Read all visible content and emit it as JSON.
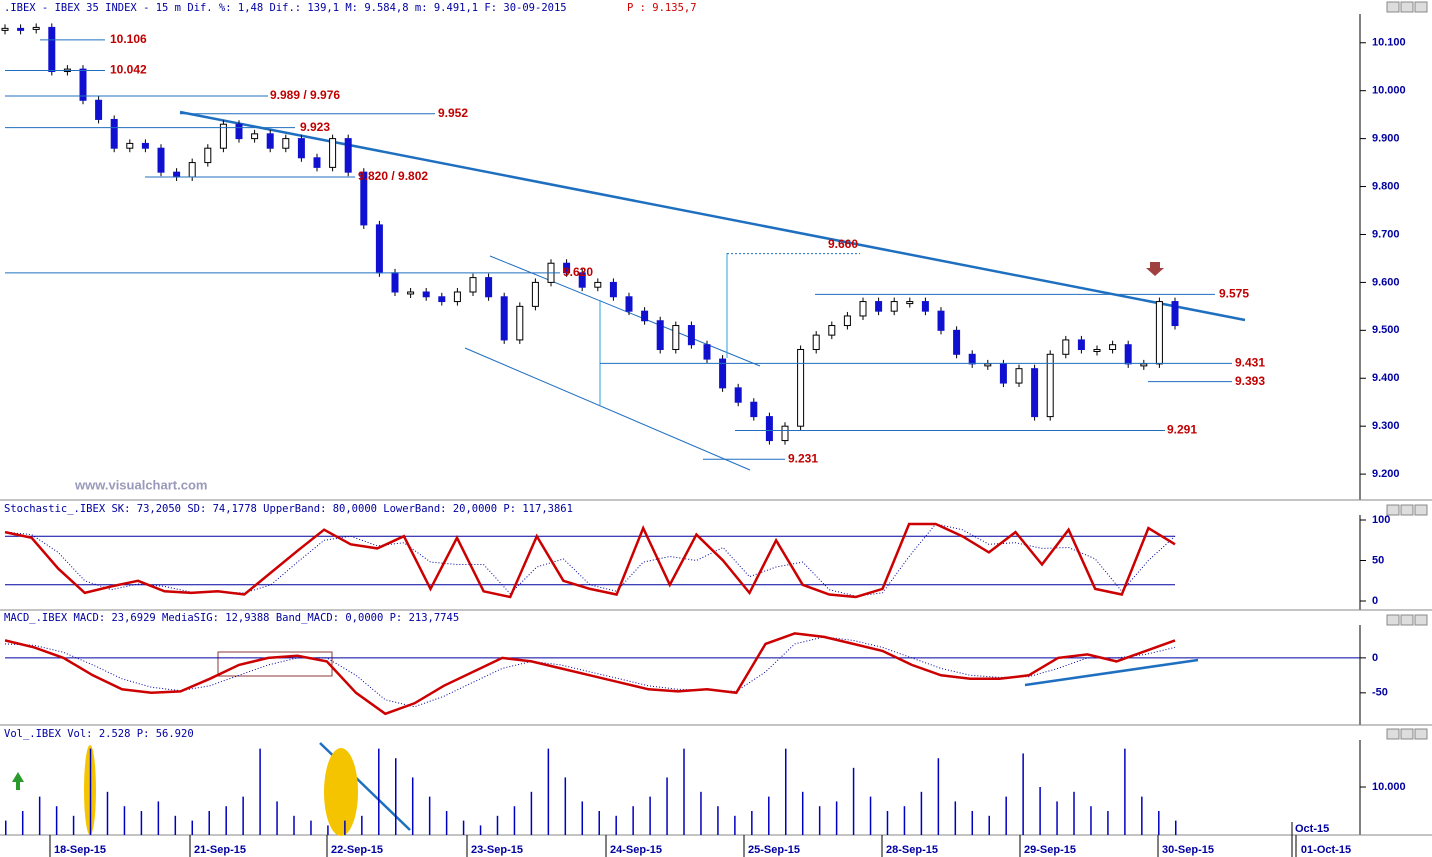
{
  "header": {
    "info": ".IBEX - IBEX 35 INDEX -  15 m Dif. %: 1,48 Dif.: 139,1 M: 9.584,8 m: 9.491,1 F: 30-09-2015",
    "last": "P : 9.135,7"
  },
  "watermark": "www.visualchart.com",
  "chart_data": [
    {
      "type": "candlestick",
      "values": [
        10130,
        10128,
        10132,
        10040,
        10045,
        9980,
        9940,
        9880,
        9890,
        9880,
        9830,
        9820,
        9850,
        9880,
        9930,
        9900,
        9910,
        9880,
        9900,
        9860,
        9840,
        9900,
        9830,
        9720,
        9620,
        9580,
        9580,
        9570,
        9560,
        9580,
        9610,
        9570,
        9480,
        9550,
        9600,
        9640,
        9620,
        9590,
        9600,
        9570,
        9540,
        9520,
        9460,
        9510,
        9470,
        9440,
        9380,
        9350,
        9320,
        9270,
        9300,
        9460,
        9490,
        9510,
        9530,
        9560,
        9540,
        9560,
        9560,
        9540,
        9500,
        9450,
        9430,
        9430,
        9390,
        9420,
        9320,
        9450,
        9480,
        9460,
        9460,
        9470,
        9430,
        9430,
        9560,
        9510
      ],
      "ylim": [
        9146,
        10160
      ],
      "yticks": [
        {
          "value": 10100,
          "label": "10.100"
        },
        {
          "value": 10000,
          "label": "10.000"
        },
        {
          "value": 9900,
          "label": "9.900"
        },
        {
          "value": 9800,
          "label": "9.800"
        },
        {
          "value": 9700,
          "label": "9.700"
        },
        {
          "value": 9600,
          "label": "9.600"
        },
        {
          "value": 9500,
          "label": "9.500"
        },
        {
          "value": 9400,
          "label": "9.400"
        },
        {
          "value": 9300,
          "label": "9.300"
        },
        {
          "value": 9200,
          "label": "9.200"
        }
      ],
      "levels": [
        {
          "value": 10106,
          "label": "10.106"
        },
        {
          "value": 10042,
          "label": "10.042"
        },
        {
          "value": 9989,
          "label": "9.989 / 9.976"
        },
        {
          "value": 9923,
          "label": "9.923"
        },
        {
          "value": 9952,
          "label": "9.952"
        },
        {
          "value": 9820,
          "label": "9.820 / 9.802"
        },
        {
          "value": 9620,
          "label": "9.620"
        },
        {
          "value": 9660,
          "label": "9.660"
        },
        {
          "value": 9575,
          "label": "9.575"
        },
        {
          "value": 9431,
          "label": "9.431"
        },
        {
          "value": 9393,
          "label": "9.393"
        },
        {
          "value": 9291,
          "label": "9.291"
        },
        {
          "value": 9231,
          "label": "9.231"
        }
      ],
      "x_labels": [
        "18-Sep-15",
        "21-Sep-15",
        "22-Sep-15",
        "23-Sep-15",
        "24-Sep-15",
        "25-Sep-15",
        "28-Sep-15",
        "29-Sep-15",
        "30-Sep-15",
        "01-Oct-15",
        "Oct-15"
      ]
    },
    {
      "type": "line",
      "title": "Stochastic_.IBEX SK: 73,2050 SD: 74,1778 UpperBand: 80,0000 LowerBand: 20,0000 P: 117,3861",
      "series": [
        {
          "name": "SK",
          "color": "#cc0000",
          "values": [
            85,
            78,
            40,
            10,
            18,
            25,
            12,
            10,
            12,
            8,
            35,
            62,
            88,
            70,
            65,
            80,
            15,
            78,
            12,
            5,
            80,
            25,
            15,
            8,
            90,
            20,
            82,
            50,
            10,
            75,
            20,
            8,
            5,
            15,
            95,
            95,
            80,
            60,
            85,
            45,
            88,
            15,
            8,
            90,
            70
          ]
        },
        {
          "name": "SD",
          "color": "#0000a0",
          "values": [
            85,
            82,
            60,
            25,
            14,
            21,
            18,
            11,
            11,
            10,
            20,
            48,
            75,
            80,
            68,
            72,
            48,
            45,
            45,
            9,
            42,
            52,
            20,
            12,
            48,
            55,
            50,
            66,
            30,
            42,
            48,
            14,
            6,
            10,
            55,
            95,
            88,
            70,
            72,
            65,
            66,
            52,
            12,
            50,
            80
          ]
        }
      ],
      "bands": [
        80,
        20
      ],
      "ylim": [
        0,
        100
      ],
      "yticks": [
        0,
        50,
        100
      ]
    },
    {
      "type": "line",
      "title": "MACD_.IBEX MACD: 23,6929 MediaSIG: 12,9388 Band_MACD: 0,0000 P: 213,7745",
      "series": [
        {
          "name": "MACD",
          "color": "#cc0000",
          "values": [
            25,
            15,
            0,
            -25,
            -45,
            -50,
            -48,
            -30,
            -10,
            0,
            3,
            -5,
            -50,
            -80,
            -65,
            -40,
            -20,
            0,
            -5,
            -15,
            -25,
            -35,
            -45,
            -48,
            -45,
            -50,
            20,
            35,
            30,
            20,
            10,
            -10,
            -25,
            -30,
            -30,
            -25,
            0,
            5,
            -5,
            10,
            25
          ]
        },
        {
          "name": "SIG",
          "color": "#0000a0",
          "values": [
            20,
            18,
            8,
            -10,
            -30,
            -42,
            -47,
            -40,
            -25,
            -10,
            0,
            0,
            -25,
            -60,
            -70,
            -55,
            -35,
            -15,
            -5,
            -10,
            -20,
            -30,
            -40,
            -45,
            -46,
            -48,
            -20,
            20,
            30,
            25,
            15,
            0,
            -15,
            -25,
            -28,
            -27,
            -15,
            0,
            0,
            5,
            15
          ]
        }
      ],
      "ylim": [
        -96,
        47
      ],
      "yticks": [
        0,
        -50
      ]
    },
    {
      "type": "bar",
      "title": "Vol_.IBEX Vol: 2.528 P: 56.920",
      "color": "#0000c0",
      "values": [
        3000,
        5000,
        8000,
        6000,
        4000,
        18000,
        9000,
        6000,
        5000,
        7000,
        4000,
        3000,
        5000,
        6000,
        8000,
        18000,
        7000,
        4000,
        3000,
        2000,
        3000,
        4000,
        18000,
        16000,
        12000,
        8000,
        5000,
        3000,
        2000,
        4000,
        6000,
        9000,
        18000,
        12000,
        7000,
        5000,
        4000,
        6000,
        8000,
        12000,
        18000,
        9000,
        6000,
        4000,
        5000,
        8000,
        18000,
        9000,
        6000,
        7000,
        14000,
        8000,
        5000,
        6000,
        9000,
        16000,
        7000,
        5000,
        4000,
        8000,
        17000,
        10000,
        7000,
        9000,
        6000,
        5000,
        18000,
        8000,
        5000,
        3000
      ],
      "ylim": [
        0,
        19800
      ],
      "yticks": [
        {
          "value": 10000,
          "label": "10.000"
        }
      ]
    }
  ]
}
